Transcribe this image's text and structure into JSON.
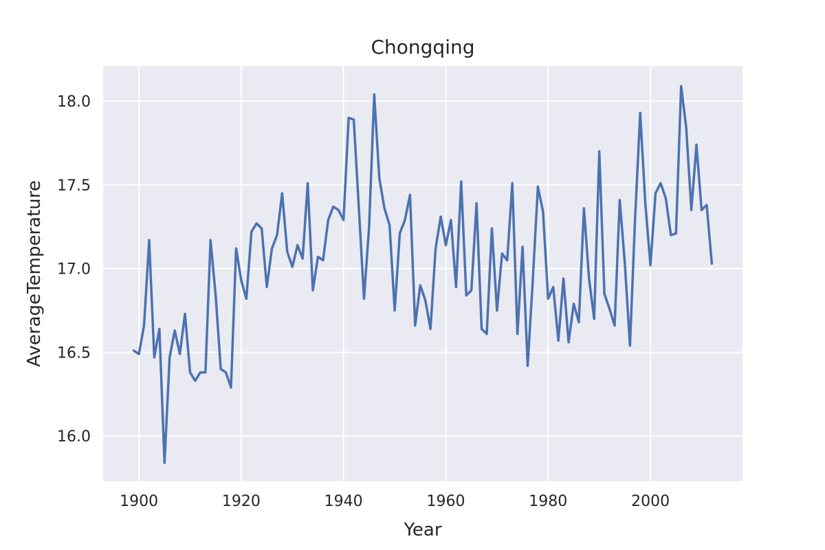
{
  "chart_data": {
    "type": "line",
    "title": "Chongqing",
    "xlabel": "Year",
    "ylabel": "AverageTemperature",
    "xlim": [
      1893,
      2018
    ],
    "ylim": [
      15.73,
      18.21
    ],
    "grid": true,
    "x_ticks": [
      1900,
      1920,
      1940,
      1960,
      1980,
      2000
    ],
    "y_ticks": [
      16.0,
      16.5,
      17.0,
      17.5,
      18.0
    ],
    "x_tick_labels": [
      "1900",
      "1920",
      "1940",
      "1960",
      "1980",
      "2000"
    ],
    "y_tick_labels": [
      "16.0",
      "16.5",
      "17.0",
      "17.5",
      "18.0"
    ],
    "colors": {
      "line": "#4c72b0",
      "plot_background": "#eaeaf2",
      "grid": "#ffffff"
    },
    "series": [
      {
        "x": [
          1899,
          1900,
          1901,
          1902,
          1903,
          1904,
          1905,
          1906,
          1907,
          1908,
          1909,
          1910,
          1911,
          1912,
          1913,
          1914,
          1915,
          1916,
          1917,
          1918,
          1919,
          1920,
          1921,
          1922,
          1923,
          1924,
          1925,
          1926,
          1927,
          1928,
          1929,
          1930,
          1931,
          1932,
          1933,
          1934,
          1935,
          1936,
          1937,
          1938,
          1939,
          1940,
          1941,
          1942,
          1943,
          1944,
          1945,
          1946,
          1947,
          1948,
          1949,
          1950,
          1951,
          1952,
          1953,
          1954,
          1955,
          1956,
          1957,
          1958,
          1959,
          1960,
          1961,
          1962,
          1963,
          1964,
          1965,
          1966,
          1967,
          1968,
          1969,
          1970,
          1971,
          1972,
          1973,
          1974,
          1975,
          1976,
          1977,
          1978,
          1979,
          1980,
          1981,
          1982,
          1983,
          1984,
          1985,
          1986,
          1987,
          1988,
          1989,
          1990,
          1991,
          1992,
          1993,
          1994,
          1995,
          1996,
          1997,
          1998,
          1999,
          2000,
          2001,
          2002,
          2003,
          2004,
          2005,
          2006,
          2007,
          2008,
          2009,
          2010,
          2011,
          2012
        ],
        "values": [
          16.51,
          16.49,
          16.66,
          17.17,
          16.47,
          16.64,
          15.84,
          16.47,
          16.63,
          16.49,
          16.73,
          16.38,
          16.33,
          16.38,
          16.38,
          17.17,
          16.84,
          16.4,
          16.38,
          16.29,
          17.12,
          16.93,
          16.82,
          17.22,
          17.27,
          17.24,
          16.89,
          17.12,
          17.2,
          17.45,
          17.1,
          17.01,
          17.14,
          17.06,
          17.51,
          16.87,
          17.07,
          17.05,
          17.29,
          17.37,
          17.35,
          17.29,
          17.9,
          17.89,
          17.36,
          16.82,
          17.25,
          18.04,
          17.54,
          17.36,
          17.26,
          16.75,
          17.21,
          17.29,
          17.44,
          16.66,
          16.9,
          16.81,
          16.64,
          17.12,
          17.31,
          17.14,
          17.29,
          16.89,
          17.52,
          16.84,
          16.87,
          17.39,
          16.64,
          16.61,
          17.24,
          16.75,
          17.09,
          17.05,
          17.51,
          16.61,
          17.13,
          16.42,
          16.93,
          17.49,
          17.34,
          16.82,
          16.89,
          16.57,
          16.94,
          16.56,
          16.79,
          16.68,
          17.36,
          16.94,
          16.7,
          17.7,
          16.85,
          16.76,
          16.66,
          17.41,
          17.03,
          16.54,
          17.3,
          17.93,
          17.39,
          17.02,
          17.45,
          17.51,
          17.42,
          17.2,
          17.21,
          18.09,
          17.84,
          17.35,
          17.74,
          17.35,
          17.38,
          17.03
        ]
      }
    ]
  }
}
